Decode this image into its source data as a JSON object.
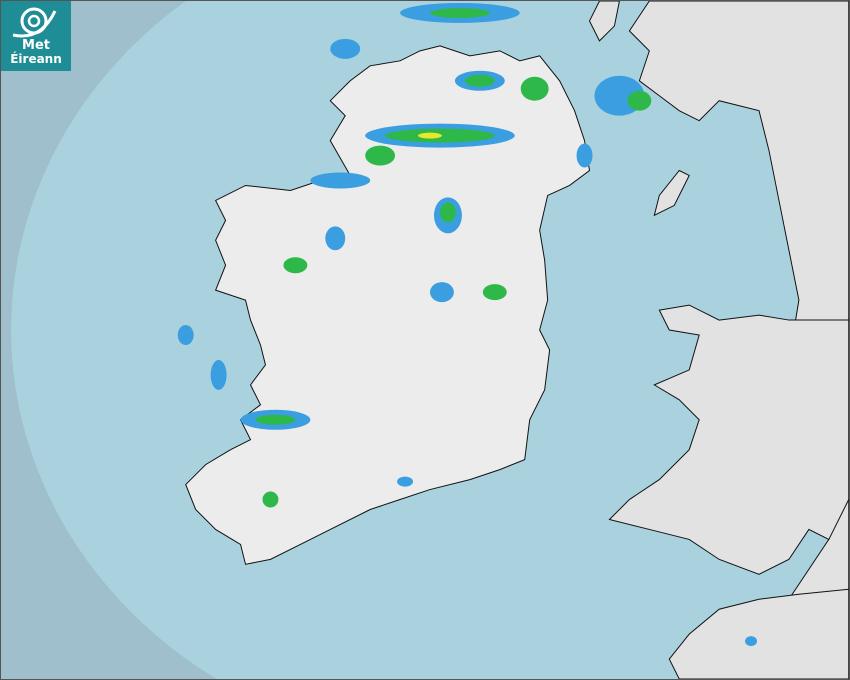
{
  "logo": {
    "line1": "Met",
    "line2": "Éireann"
  },
  "map": {
    "type": "precipitation radar",
    "colors": {
      "outside_coverage": "#9ebfcb",
      "sea": "#a9d2de",
      "land": "#eeeeee",
      "rain_light": "#3a9ee0",
      "rain_moderate": "#2fb84a",
      "rain_heavy": "#e8e82a"
    }
  }
}
